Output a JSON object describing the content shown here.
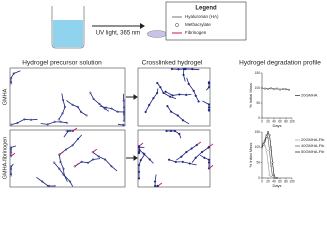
{
  "header": {
    "uv_label": "UV light, 365 nm",
    "legend": {
      "title": "Legend",
      "items": [
        "Hyaluronan (HA)",
        "Methacrylate",
        "Fibrinogen"
      ]
    }
  },
  "sections": {
    "precursor": "Hydrogel precursor solution",
    "crosslinked": "Crosslinked hydrogel",
    "degradation": "Hydrogel degradation profile"
  },
  "rows": [
    "GMHA",
    "GMHA-fibrinogen"
  ],
  "chart_data": [
    {
      "type": "line",
      "xlabel": "Days",
      "ylabel": "% Initial Mass",
      "x": [
        0,
        10,
        20,
        30,
        40,
        50,
        60,
        70,
        80,
        90
      ],
      "series": [
        {
          "name": "20GMHA",
          "color": "#222222",
          "values": [
            100,
            98,
            97,
            99,
            96,
            98,
            95,
            97,
            96,
            94
          ]
        }
      ],
      "xlim": [
        0,
        100
      ],
      "ylim": [
        0,
        150
      ],
      "xticks": [
        0,
        20,
        40,
        60,
        80,
        100
      ],
      "yticks": [
        0,
        50,
        100,
        150
      ]
    },
    {
      "type": "line",
      "xlabel": "Days",
      "ylabel": "% Initial Mass",
      "x": [
        0,
        5,
        10,
        15,
        20,
        25,
        30,
        35,
        40,
        45,
        50
      ],
      "series": [
        {
          "name": "20GMHA-Fib",
          "color": "#999999",
          "values": [
            100,
            110,
            105,
            90,
            50,
            10,
            0,
            0,
            0,
            0,
            0
          ]
        },
        {
          "name": "40GMHA-Fib",
          "color": "#555555",
          "values": [
            100,
            115,
            125,
            140,
            130,
            90,
            40,
            5,
            0,
            0,
            0
          ]
        },
        {
          "name": "50GMHA-Fib",
          "color": "#111111",
          "values": [
            100,
            110,
            120,
            135,
            150,
            140,
            100,
            50,
            10,
            0,
            0
          ]
        }
      ],
      "xlim": [
        0,
        100
      ],
      "ylim": [
        0,
        150
      ],
      "xticks": [
        0,
        20,
        40,
        60,
        80,
        100
      ],
      "yticks": [
        0,
        50,
        100,
        150
      ]
    }
  ]
}
